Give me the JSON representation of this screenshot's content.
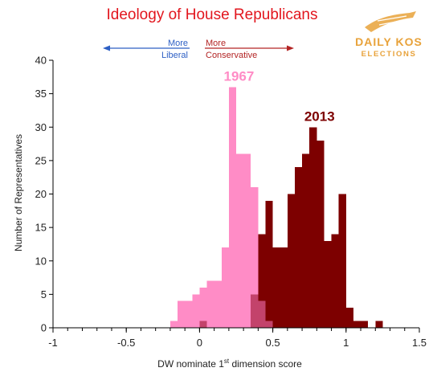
{
  "chart_data": {
    "type": "bar",
    "title": "Ideology of House Republicans",
    "xlabel": "DW nominate 1st dimension score",
    "xlabel_main": "DW nominate 1",
    "xlabel_sup": "st",
    "xlabel_tail": " dimension score",
    "ylabel": "Number of Representatives",
    "xlim": [
      -1,
      1.5
    ],
    "ylim": [
      0,
      40
    ],
    "xticks": [
      "-1",
      "-0.5",
      "0",
      "0.5",
      "1",
      "1.5"
    ],
    "yticks": [
      "0",
      "5",
      "10",
      "15",
      "20",
      "25",
      "30",
      "35",
      "40"
    ],
    "bin_width": 0.05,
    "grid": false,
    "annotations": {
      "more_liberal": [
        "More",
        "Liberal"
      ],
      "more_conservative": [
        "More",
        "Conservative"
      ]
    },
    "series": [
      {
        "name": "1967",
        "color": "#ff8cc6",
        "bins": [
          {
            "x": -0.2,
            "y": 1
          },
          {
            "x": -0.15,
            "y": 4
          },
          {
            "x": -0.1,
            "y": 4
          },
          {
            "x": -0.05,
            "y": 5
          },
          {
            "x": 0.0,
            "y": 6
          },
          {
            "x": 0.05,
            "y": 7
          },
          {
            "x": 0.1,
            "y": 7
          },
          {
            "x": 0.15,
            "y": 12
          },
          {
            "x": 0.2,
            "y": 36
          },
          {
            "x": 0.25,
            "y": 26
          },
          {
            "x": 0.3,
            "y": 26
          },
          {
            "x": 0.35,
            "y": 21
          },
          {
            "x": 0.4,
            "y": 4
          },
          {
            "x": 0.45,
            "y": 1
          }
        ]
      },
      {
        "name": "2013",
        "color": "#7d0000",
        "bins": [
          {
            "x": 0.0,
            "y": 1
          },
          {
            "x": 0.35,
            "y": 5
          },
          {
            "x": 0.4,
            "y": 14
          },
          {
            "x": 0.45,
            "y": 19
          },
          {
            "x": 0.5,
            "y": 12
          },
          {
            "x": 0.55,
            "y": 12
          },
          {
            "x": 0.6,
            "y": 20
          },
          {
            "x": 0.65,
            "y": 24
          },
          {
            "x": 0.7,
            "y": 26
          },
          {
            "x": 0.75,
            "y": 30
          },
          {
            "x": 0.8,
            "y": 28
          },
          {
            "x": 0.85,
            "y": 13
          },
          {
            "x": 0.9,
            "y": 14
          },
          {
            "x": 0.95,
            "y": 20
          },
          {
            "x": 1.0,
            "y": 3
          },
          {
            "x": 1.05,
            "y": 1
          },
          {
            "x": 1.1,
            "y": 1
          },
          {
            "x": 1.2,
            "y": 1
          }
        ]
      }
    ],
    "overlap_color": "#c3436b"
  },
  "logo": {
    "line1": "DAILY KOS",
    "line2": "ELECTIONS",
    "color": "#e8a23a"
  }
}
